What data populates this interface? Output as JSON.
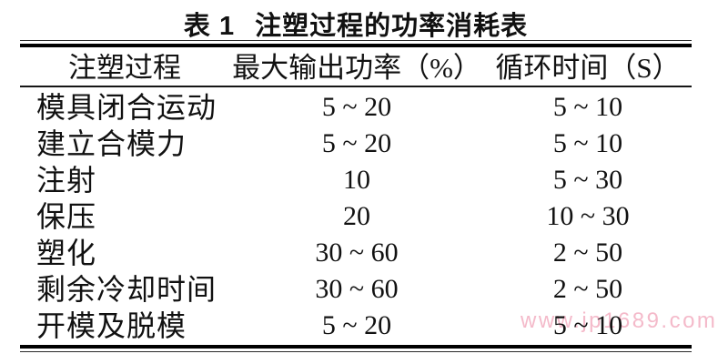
{
  "page": {
    "background_color": "#ffffff",
    "text_color": "#111111",
    "rule_color": "#000000"
  },
  "title": {
    "tag": "表 1",
    "text": "注塑过程的功率消耗表"
  },
  "table": {
    "headers": [
      "注塑过程",
      "最大输出功率（%）",
      "循环时间（S）"
    ],
    "rows": [
      {
        "process": "模具闭合运动",
        "max_power": "5 ~ 20",
        "cycle_time": "5 ~ 10"
      },
      {
        "process": "建立合模力",
        "max_power": "5 ~ 20",
        "cycle_time": "5 ~ 10"
      },
      {
        "process": "注射",
        "max_power": "10",
        "cycle_time": "5 ~ 30"
      },
      {
        "process": "保压",
        "max_power": "20",
        "cycle_time": "10 ~ 30"
      },
      {
        "process": "塑化",
        "max_power": "30 ~ 60",
        "cycle_time": "2 ~ 50"
      },
      {
        "process": "剩余冷却时间",
        "max_power": "30 ~ 60",
        "cycle_time": "2 ~ 50"
      },
      {
        "process": "开模及脱模",
        "max_power": "5 ~ 20",
        "cycle_time": "5 ~ 10"
      }
    ]
  },
  "watermark": {
    "text": "www.jp1689.com",
    "color": "#f2a9bd"
  }
}
